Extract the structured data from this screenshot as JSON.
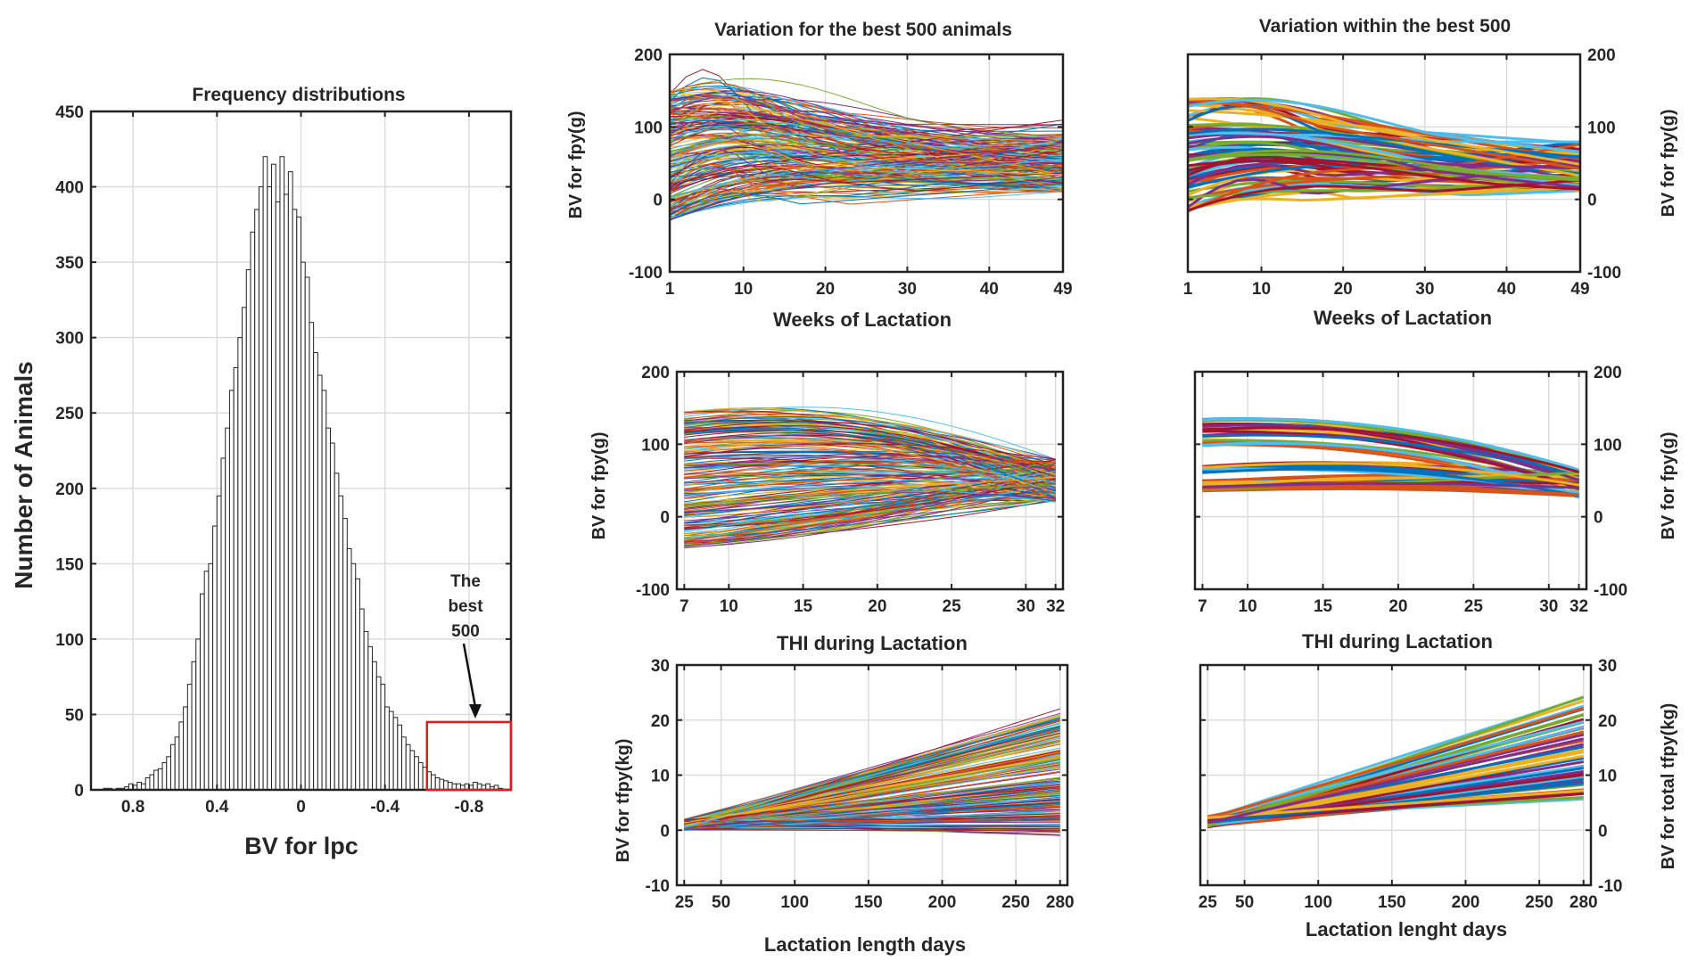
{
  "chart_data": [
    {
      "id": "hist",
      "type": "bar",
      "title": "Frequency distributions",
      "xlabel": "BV for lpc",
      "ylabel": "Number of Animals",
      "xlim": [
        1.0,
        -1.0
      ],
      "ylim": [
        0,
        450
      ],
      "xticks": [
        0.8,
        0.4,
        0,
        -0.4,
        -0.8
      ],
      "xtick_labels": [
        "0.8",
        "0.4",
        "0",
        "-0.4",
        "-0.8"
      ],
      "yticks": [
        0,
        50,
        100,
        150,
        200,
        250,
        300,
        350,
        400,
        450
      ],
      "bin_width": 0.02,
      "bin_centers": [
        0.95,
        0.93,
        0.91,
        0.89,
        0.87,
        0.85,
        0.83,
        0.81,
        0.79,
        0.77,
        0.75,
        0.73,
        0.71,
        0.69,
        0.67,
        0.65,
        0.63,
        0.61,
        0.59,
        0.57,
        0.55,
        0.53,
        0.51,
        0.49,
        0.47,
        0.45,
        0.43,
        0.41,
        0.39,
        0.37,
        0.35,
        0.33,
        0.31,
        0.29,
        0.27,
        0.25,
        0.23,
        0.21,
        0.19,
        0.17,
        0.15,
        0.13,
        0.11,
        0.09,
        0.07,
        0.05,
        0.03,
        0.01,
        -0.01,
        -0.03,
        -0.05,
        -0.07,
        -0.09,
        -0.11,
        -0.13,
        -0.15,
        -0.17,
        -0.19,
        -0.21,
        -0.23,
        -0.25,
        -0.27,
        -0.29,
        -0.31,
        -0.33,
        -0.35,
        -0.37,
        -0.39,
        -0.41,
        -0.43,
        -0.45,
        -0.47,
        -0.49,
        -0.51,
        -0.53,
        -0.55,
        -0.57,
        -0.59,
        -0.61,
        -0.63,
        -0.65,
        -0.67,
        -0.69,
        -0.71,
        -0.73,
        -0.75,
        -0.77,
        -0.79,
        -0.81,
        -0.83,
        -0.85,
        -0.87,
        -0.89,
        -0.91,
        -0.93,
        -0.95
      ],
      "values": [
        0,
        1,
        1,
        0,
        1,
        1,
        2,
        4,
        3,
        5,
        4,
        8,
        10,
        13,
        14,
        18,
        22,
        30,
        35,
        45,
        55,
        70,
        85,
        100,
        130,
        145,
        150,
        175,
        195,
        220,
        240,
        265,
        280,
        300,
        320,
        345,
        370,
        385,
        400,
        420,
        400,
        415,
        390,
        420,
        395,
        410,
        385,
        380,
        350,
        340,
        310,
        290,
        275,
        265,
        240,
        230,
        210,
        195,
        180,
        160,
        150,
        140,
        120,
        105,
        95,
        85,
        75,
        70,
        55,
        52,
        48,
        43,
        35,
        30,
        26,
        22,
        18,
        15,
        12,
        10,
        8,
        7,
        6,
        5,
        4,
        4,
        3,
        4,
        3,
        5,
        4,
        3,
        4,
        2,
        3,
        1
      ],
      "annotation": [
        "The",
        "best",
        "500"
      ],
      "highlight_color": "#e41a1c",
      "highlight_range": [
        -0.6,
        -1.0
      ],
      "highlight_ymax": 45
    },
    {
      "id": "tl",
      "type": "line",
      "title": "Variation for the best 500 animals",
      "xlabel": "Weeks of Lactation",
      "ylabel": "BV for fpy(g)",
      "xlim": [
        1,
        49
      ],
      "ylim": [
        -100,
        200
      ],
      "xticks": [
        1,
        10,
        20,
        30,
        40,
        49
      ],
      "yticks": [
        -100,
        0,
        100,
        200
      ]
    },
    {
      "id": "tr",
      "type": "line",
      "title": "Variation within the best 500",
      "xlabel": "Weeks of Lactation",
      "ylabel": "BV for fpy(g)",
      "xlim": [
        1,
        49
      ],
      "ylim": [
        -100,
        200
      ],
      "xticks": [
        1,
        10,
        20,
        30,
        40,
        49
      ],
      "yticks": [
        -100,
        0,
        100,
        200
      ]
    },
    {
      "id": "ml",
      "type": "line",
      "title": "",
      "xlabel": "THI during Lactation",
      "ylabel": "BV for fpy(g)",
      "xlim": [
        6.5,
        32.5
      ],
      "ylim": [
        -100,
        200
      ],
      "xticks": [
        7,
        10,
        15,
        20,
        25,
        30,
        32
      ],
      "yticks": [
        -100,
        0,
        100,
        200
      ]
    },
    {
      "id": "mr",
      "type": "line",
      "title": "",
      "xlabel": "THI during Lactation",
      "ylabel": "BV for fpy(g)",
      "xlim": [
        6.5,
        32.5
      ],
      "ylim": [
        -100,
        200
      ],
      "xticks": [
        7,
        10,
        15,
        20,
        25,
        30,
        32
      ],
      "yticks": [
        -100,
        0,
        100,
        200
      ]
    },
    {
      "id": "bl",
      "type": "line",
      "title": "",
      "xlabel": "Lactation length days",
      "ylabel": "BV for tfpy(kg)",
      "xlim": [
        20,
        285
      ],
      "ylim": [
        -10,
        30
      ],
      "xticks": [
        25,
        50,
        100,
        150,
        200,
        250,
        280
      ],
      "yticks": [
        -10,
        0,
        10,
        20,
        30
      ]
    },
    {
      "id": "br",
      "type": "line",
      "title": "",
      "xlabel": "Lactation lenght days",
      "ylabel": "BV for total tfpy(kg)",
      "xlim": [
        20,
        285
      ],
      "ylim": [
        -10,
        30
      ],
      "xticks": [
        25,
        50,
        100,
        150,
        200,
        250,
        280
      ],
      "yticks": [
        -10,
        0,
        10,
        20,
        30
      ]
    }
  ],
  "series_colors": [
    "#0072BD",
    "#D95319",
    "#EDB120",
    "#7E2F8E",
    "#77AC30",
    "#4DBEEE",
    "#A2142F"
  ]
}
